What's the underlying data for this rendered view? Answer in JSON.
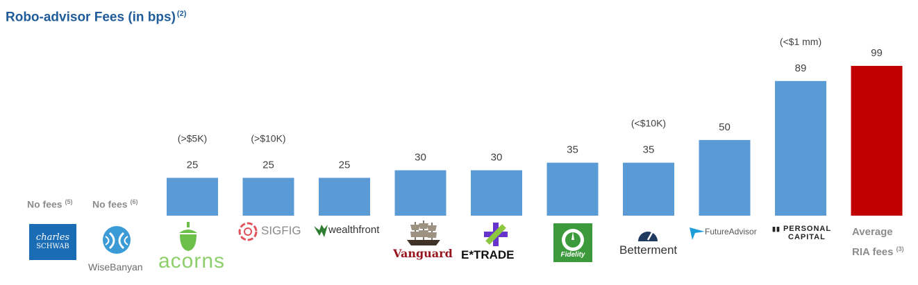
{
  "title": "Robo-advisor Fees (in bps)",
  "title_note": "(2)",
  "no_fees": [
    {
      "label": "No fees",
      "note": "(5)"
    },
    {
      "label": "No fees",
      "note": "(6)"
    }
  ],
  "logos": {
    "schwab_line1": "charles",
    "schwab_line2": "SCHWAB",
    "wisebanyan": "WiseBanyan",
    "acorns": "acorns",
    "sigfig": "SIGFIG",
    "wealthfront": "wealthfront",
    "vanguard": "Vanguard",
    "etrade": "E*TRADE",
    "fidelity": "Fidelity",
    "betterment": "Betterment",
    "futureadvisor": "FutureAdvisor",
    "personal_capital_line1": "PERSONAL",
    "personal_capital_line2": "CAPITAL"
  },
  "avg_label_line1": "Average",
  "avg_label_line2": "RIA fees",
  "avg_label_note": "(3)",
  "colors": {
    "bar": "#5b9bd5",
    "highlight": "#c00000",
    "title": "#1f5c99",
    "muted": "#8c8c8c"
  },
  "chart_data": {
    "type": "bar",
    "title": "Robo-advisor Fees (in bps)",
    "xlabel": "",
    "ylabel": "",
    "ylim": [
      0,
      99
    ],
    "categories": [
      "Acorns",
      "SigFig",
      "Wealthfront",
      "Vanguard",
      "E*TRADE",
      "Fidelity",
      "Betterment",
      "FutureAdvisor",
      "Personal Capital",
      "Average RIA fees"
    ],
    "values": [
      25,
      25,
      25,
      30,
      30,
      35,
      35,
      50,
      89,
      99
    ],
    "annotations": [
      "(>$5K)",
      "(>$10K)",
      "",
      "",
      "",
      "",
      "(<$10K)",
      "",
      "(<$1 mm)",
      ""
    ],
    "highlight_index": 9
  }
}
